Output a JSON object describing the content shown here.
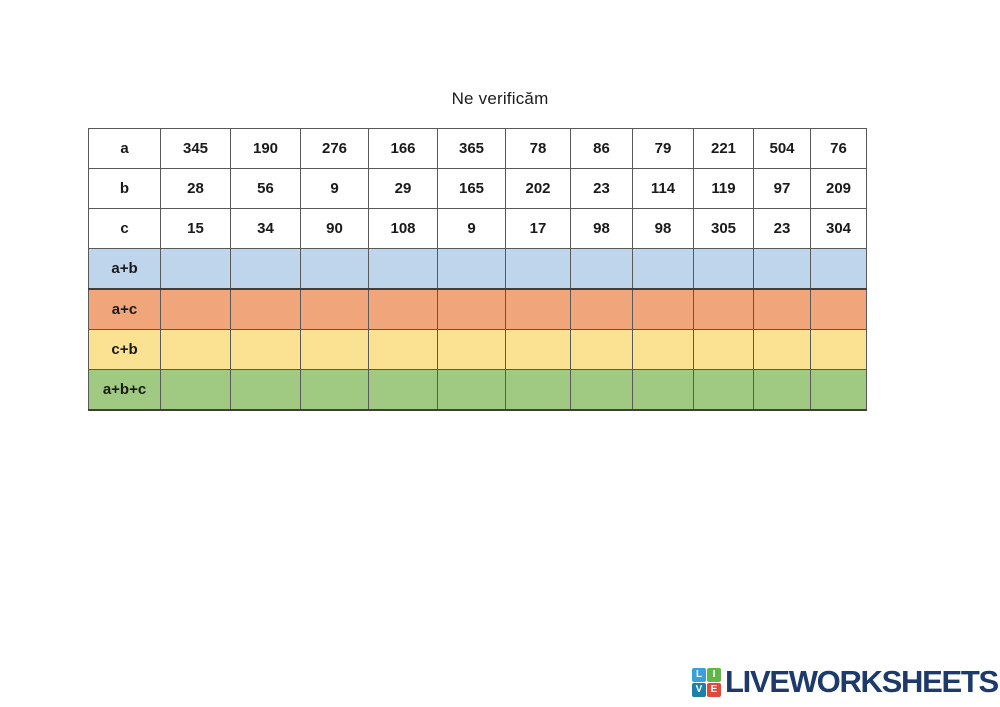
{
  "title": "Ne verificăm",
  "table": {
    "columns": 11,
    "border_color": "#595959",
    "rows": [
      {
        "label": "a",
        "type": "given",
        "bg": "#ffffff",
        "values": [
          345,
          190,
          276,
          166,
          365,
          78,
          86,
          79,
          221,
          504,
          76
        ]
      },
      {
        "label": "b",
        "type": "given",
        "bg": "#ffffff",
        "values": [
          28,
          56,
          9,
          29,
          165,
          202,
          23,
          114,
          119,
          97,
          209
        ]
      },
      {
        "label": "c",
        "type": "given",
        "bg": "#ffffff",
        "values": [
          15,
          34,
          90,
          108,
          9,
          17,
          98,
          98,
          305,
          23,
          304
        ]
      },
      {
        "label": "a+b",
        "type": "answer",
        "bg": "#bed5eb",
        "values": null
      },
      {
        "label": "a+c",
        "type": "answer",
        "bg": "#f0a67a",
        "values": null
      },
      {
        "label": "c+b",
        "type": "answer",
        "bg": "#fbe192",
        "values": null
      },
      {
        "label": "a+b+c",
        "type": "answer",
        "bg": "#a0c981",
        "values": null
      }
    ]
  },
  "logo": {
    "text": "LIVEWORKSHEETS",
    "color": "#1d3a6b",
    "squares": [
      {
        "letter": "L",
        "color": "#3aa0db"
      },
      {
        "letter": "I",
        "color": "#62b54a"
      },
      {
        "letter": "V",
        "color": "#1c80a8"
      },
      {
        "letter": "E",
        "color": "#e04a3a"
      }
    ]
  }
}
